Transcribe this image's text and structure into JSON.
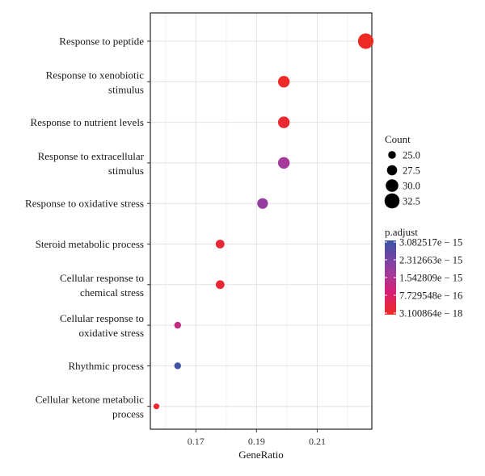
{
  "chart_data": {
    "type": "scatter",
    "xlabel": "GeneRatio",
    "ylabel": "",
    "xlim": [
      0.155,
      0.228
    ],
    "x_ticks": [
      "0.17",
      "0.19",
      "0.21"
    ],
    "x_tick_values": [
      0.17,
      0.19,
      0.21
    ],
    "grid": true,
    "legend_placement": "right",
    "categories": [
      "Response to peptide",
      "Response to xenobiotic\nstimulus",
      "Response to nutrient levels",
      "Response to extracellular\nstimulus",
      "Response to oxidative stress",
      "Steroid metabolic process",
      "Cellular response to\nchemical stress",
      "Cellular response to\noxidative stress",
      "Rhythmic process",
      "Cellular ketone metabolic\nprocess"
    ],
    "points": [
      {
        "term": "Response to peptide",
        "gene_ratio": 0.226,
        "count": 33,
        "p_adjust": 3.2e-18
      },
      {
        "term": "Response to xenobiotic stimulus",
        "gene_ratio": 0.199,
        "count": 29,
        "p_adjust": 4e-17
      },
      {
        "term": "Response to nutrient levels",
        "gene_ratio": 0.199,
        "count": 29,
        "p_adjust": 1.5e-16
      },
      {
        "term": "Response to extracellular stimulus",
        "gene_ratio": 0.199,
        "count": 29,
        "p_adjust": 1.7e-15
      },
      {
        "term": "Response to oxidative stress",
        "gene_ratio": 0.192,
        "count": 28,
        "p_adjust": 1.9e-15
      },
      {
        "term": "Steroid metabolic process",
        "gene_ratio": 0.178,
        "count": 26,
        "p_adjust": 2e-16
      },
      {
        "term": "Cellular response to chemical stress",
        "gene_ratio": 0.178,
        "count": 26,
        "p_adjust": 2e-16
      },
      {
        "term": "Cellular response to oxidative stress",
        "gene_ratio": 0.164,
        "count": 24,
        "p_adjust": 1.2e-15
      },
      {
        "term": "Rhythmic process",
        "gene_ratio": 0.164,
        "count": 24,
        "p_adjust": 3e-15
      },
      {
        "term": "Cellular ketone metabolic process",
        "gene_ratio": 0.157,
        "count": 23,
        "p_adjust": 1e-16
      }
    ],
    "size_legend": {
      "title": "Count",
      "labels": [
        "25.0",
        "27.5",
        "30.0",
        "32.5"
      ],
      "values": [
        25.0,
        27.5,
        30.0,
        32.5
      ]
    },
    "color_legend": {
      "title": "p.adjust",
      "labels": [
        "3.082517e − 15",
        "2.312663e − 15",
        "1.542809e − 15",
        "7.729548e − 16",
        "3.100864e − 18"
      ],
      "values": [
        3.082517e-15,
        2.312663e-15,
        1.542809e-15,
        7.729548e-16,
        3.100864e-18
      ],
      "range": [
        3.100864e-18,
        3.082517e-15
      ],
      "low_color": "#ee2a24",
      "high_color": "#3a54a4"
    }
  }
}
